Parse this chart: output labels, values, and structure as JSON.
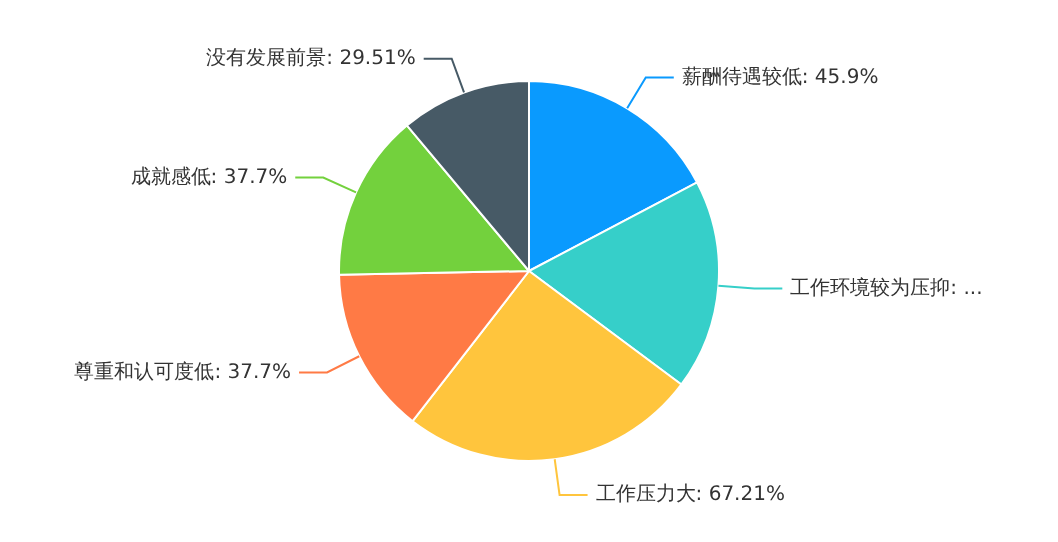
{
  "chart_data": {
    "type": "pie",
    "categories": [
      "薪酬待遇较低",
      "工作环境较为压抑",
      "工作压力大",
      "尊重和认可度低",
      "成就感低",
      "没有发展前景"
    ],
    "values": [
      45.9,
      47.54,
      67.21,
      37.7,
      37.7,
      29.51
    ],
    "value_labels": [
      "45.9%",
      "...",
      "67.21%",
      "37.7%",
      "37.7%",
      "29.51%"
    ],
    "colors": [
      "#0a9afe",
      "#36cfc9",
      "#ffc53d",
      "#ff7a45",
      "#73d13d",
      "#475a66"
    ],
    "legend": false
  }
}
